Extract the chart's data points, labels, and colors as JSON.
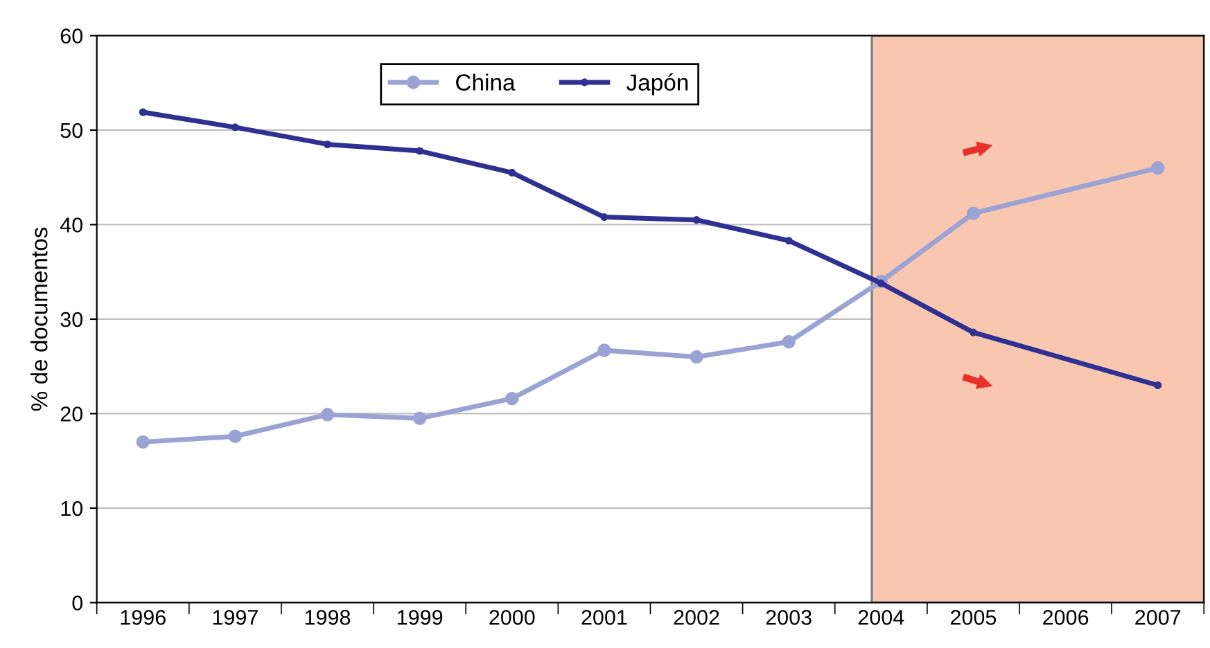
{
  "chart_data": {
    "type": "line",
    "ylabel": "% de documentos",
    "categories": [
      "1996",
      "1997",
      "1998",
      "1999",
      "2000",
      "2001",
      "2002",
      "2003",
      "2004",
      "2005",
      "2006",
      "2007"
    ],
    "series": [
      {
        "name": "China",
        "color": "#9ba3d4",
        "values": [
          17.0,
          17.6,
          19.9,
          19.5,
          21.6,
          26.7,
          26.0,
          27.6,
          34.0,
          41.2,
          null,
          46.0
        ]
      },
      {
        "name": "Japón",
        "color": "#2e3192",
        "values": [
          51.9,
          50.3,
          48.5,
          47.8,
          45.5,
          40.8,
          40.5,
          38.3,
          33.8,
          28.6,
          null,
          23.0
        ]
      }
    ],
    "ylim": [
      0,
      60
    ],
    "yticks": [
      0,
      10,
      20,
      30,
      40,
      50,
      60
    ],
    "grid": "y",
    "legend": "top",
    "marker": "circle",
    "line_style": "solid",
    "bands": [
      {
        "axis": "x",
        "from": "2004",
        "to": "2007",
        "color": "#f9c6b0"
      }
    ]
  }
}
